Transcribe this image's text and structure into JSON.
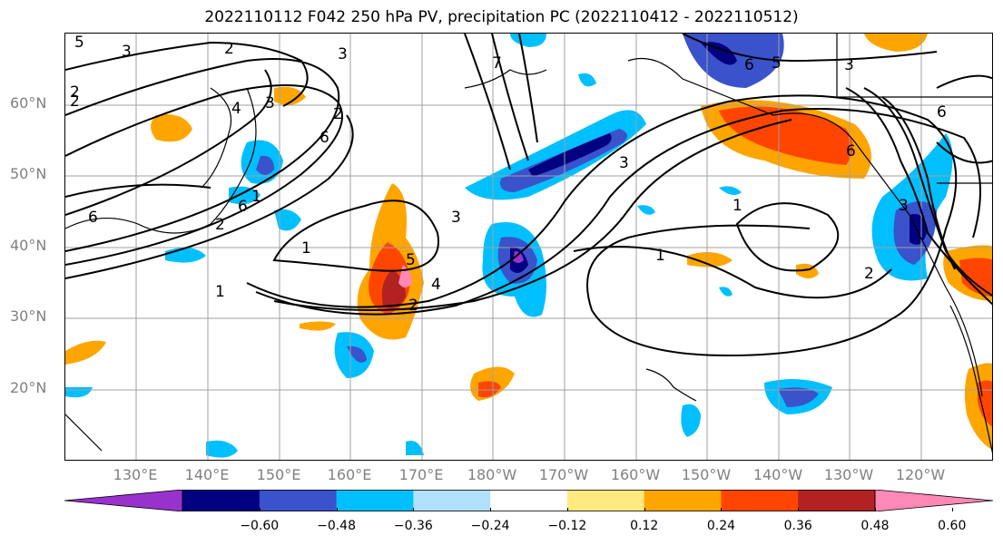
{
  "title": "2022110112 F042 250 hPa PV, precipitation PC (2022110412 - 2022110512)",
  "latitude_labels": [
    "60°N",
    "50°N",
    "40°N",
    "30°N",
    "20°N"
  ],
  "longitude_labels": [
    "130°E",
    "140°E",
    "150°E",
    "160°E",
    "170°E",
    "180°W",
    "170°W",
    "160°W",
    "150°W",
    "140°W",
    "130°W",
    "120°W"
  ],
  "colorbar": {
    "tick_labels": [
      "−0.60",
      "−0.48",
      "−0.36",
      "−0.24",
      "−0.12",
      "0.12",
      "0.24",
      "0.36",
      "0.48",
      "0.60"
    ],
    "colors": [
      "#9932cc",
      "#000080",
      "#3a52cc",
      "#00bfff",
      "#b0e0fa",
      "#ffffff",
      "#ffea80",
      "#ffa500",
      "#ff4500",
      "#b22222",
      "#ff88b4"
    ]
  },
  "contour_labels": [
    "5",
    "3",
    "2",
    "3",
    "2",
    "4",
    "3",
    "2",
    "6",
    "1",
    "2",
    "6",
    "1",
    "3",
    "1",
    "1",
    "5",
    "4",
    "2",
    "6",
    "5",
    "3",
    "6",
    "3",
    "1",
    "2",
    "6",
    "3",
    "7",
    "6",
    "2"
  ],
  "colors": {
    "contour": "#000000",
    "coast": "#000000",
    "grid": "#a0a0a0",
    "axis_label": "#808080"
  }
}
